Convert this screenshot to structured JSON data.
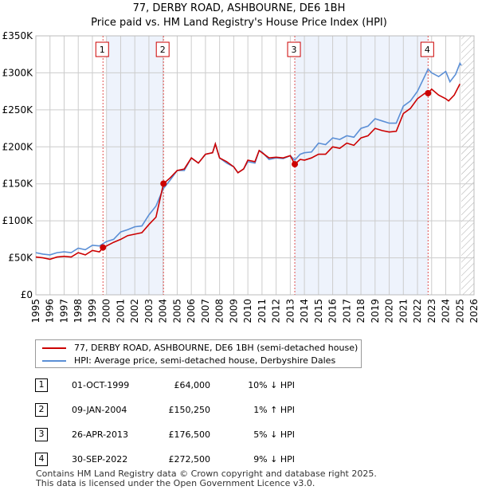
{
  "title": "77, DERBY ROAD, ASHBOURNE, DE6 1BH",
  "subtitle": "Price paid vs. HM Land Registry's House Price Index (HPI)",
  "chart_data": {
    "type": "line",
    "ylim": [
      0,
      350000
    ],
    "xlim": [
      1995,
      2026
    ],
    "y_ticks": [
      {
        "v": 0,
        "label": "£0"
      },
      {
        "v": 50000,
        "label": "£50K"
      },
      {
        "v": 100000,
        "label": "£100K"
      },
      {
        "v": 150000,
        "label": "£150K"
      },
      {
        "v": 200000,
        "label": "£200K"
      },
      {
        "v": 250000,
        "label": "£250K"
      },
      {
        "v": 300000,
        "label": "£300K"
      },
      {
        "v": 350000,
        "label": "£350K"
      }
    ],
    "x_ticks": [
      "1995",
      "1996",
      "1997",
      "1998",
      "1999",
      "2000",
      "2001",
      "2002",
      "2003",
      "2004",
      "2005",
      "2006",
      "2007",
      "2008",
      "2009",
      "2010",
      "2011",
      "2012",
      "2013",
      "2014",
      "2015",
      "2016",
      "2017",
      "2018",
      "2019",
      "2020",
      "2021",
      "2022",
      "2023",
      "2024",
      "2025",
      "2026"
    ],
    "shaded_ranges": [
      [
        2000,
        2004.03
      ],
      [
        2013.32,
        2022.75
      ]
    ],
    "future_hatch_from": 2025.1,
    "series": [
      {
        "name": "77, DERBY ROAD, ASHBOURNE, DE6 1BH (semi-detached house)",
        "color": "#cc0000",
        "x": [
          1995,
          1995.5,
          1996,
          1996.5,
          1997,
          1997.5,
          1998,
          1998.5,
          1999,
          1999.5,
          1999.75,
          2000,
          2000.5,
          2001,
          2001.5,
          2002,
          2002.5,
          2003,
          2003.5,
          2004.03,
          2004.5,
          2005,
          2005.5,
          2006,
          2006.5,
          2007,
          2007.5,
          2007.7,
          2008,
          2008.5,
          2009,
          2009.3,
          2009.7,
          2010,
          2010.5,
          2010.8,
          2011,
          2011.5,
          2012,
          2012.5,
          2013,
          2013.32,
          2013.7,
          2014,
          2014.5,
          2015,
          2015.5,
          2016,
          2016.5,
          2017,
          2017.5,
          2018,
          2018.5,
          2019,
          2019.5,
          2020,
          2020.5,
          2021,
          2021.5,
          2022,
          2022.5,
          2022.75,
          2023,
          2023.5,
          2024,
          2024.2,
          2024.6,
          2025
        ],
        "y": [
          51000,
          50000,
          48000,
          51000,
          52000,
          51000,
          57000,
          54000,
          60000,
          58000,
          64000,
          66000,
          71000,
          75000,
          80000,
          82000,
          84000,
          95000,
          105000,
          150250,
          158000,
          168000,
          170000,
          185000,
          178000,
          190000,
          192000,
          204000,
          185000,
          180000,
          173000,
          165000,
          170000,
          182000,
          180000,
          195000,
          192000,
          185000,
          186000,
          185000,
          188000,
          176500,
          183000,
          182000,
          185000,
          190000,
          190000,
          200000,
          198000,
          205000,
          202000,
          212000,
          215000,
          225000,
          222000,
          220000,
          221000,
          245000,
          252000,
          265000,
          272000,
          272500,
          278000,
          270000,
          265000,
          262000,
          270000,
          285000
        ]
      },
      {
        "name": "HPI: Average price, semi-detached house, Derbyshire Dales",
        "color": "#5b8fd6",
        "x": [
          1995,
          1995.5,
          1996,
          1996.5,
          1997,
          1997.5,
          1998,
          1998.5,
          1999,
          1999.5,
          2000,
          2000.5,
          2001,
          2001.5,
          2002,
          2002.5,
          2003,
          2003.5,
          2004,
          2004.5,
          2005,
          2005.5,
          2006,
          2006.5,
          2007,
          2007.5,
          2007.7,
          2008,
          2008.5,
          2009,
          2009.3,
          2009.7,
          2010,
          2010.5,
          2010.8,
          2011,
          2011.5,
          2012,
          2012.5,
          2013,
          2013.32,
          2013.7,
          2014,
          2014.5,
          2015,
          2015.5,
          2016,
          2016.5,
          2017,
          2017.5,
          2018,
          2018.5,
          2019,
          2019.5,
          2020,
          2020.5,
          2021,
          2021.5,
          2022,
          2022.5,
          2022.75,
          2023,
          2023.5,
          2024,
          2024.3,
          2024.7,
          2025,
          2025.1
        ],
        "y": [
          57000,
          55000,
          54000,
          57000,
          58000,
          57000,
          63000,
          61000,
          67000,
          66000,
          72000,
          75000,
          85000,
          88000,
          92000,
          93000,
          108000,
          120000,
          143000,
          155000,
          168000,
          168000,
          185000,
          178000,
          190000,
          192000,
          204000,
          185000,
          178000,
          173000,
          165000,
          170000,
          180000,
          178000,
          195000,
          193000,
          183000,
          185000,
          184000,
          188000,
          182000,
          190000,
          192000,
          193000,
          205000,
          203000,
          212000,
          210000,
          215000,
          213000,
          225000,
          228000,
          238000,
          235000,
          232000,
          232000,
          255000,
          262000,
          275000,
          295000,
          305000,
          300000,
          295000,
          302000,
          288000,
          298000,
          313000,
          310000
        ]
      }
    ],
    "sales": [
      {
        "n": "1",
        "x": 1999.75,
        "y": 64000
      },
      {
        "n": "2",
        "x": 2004.03,
        "y": 150250
      },
      {
        "n": "3",
        "x": 2013.32,
        "y": 176500
      },
      {
        "n": "4",
        "x": 2022.75,
        "y": 272500
      }
    ]
  },
  "legend": [
    "77, DERBY ROAD, ASHBOURNE, DE6 1BH (semi-detached house)",
    "HPI: Average price, semi-detached house, Derbyshire Dales"
  ],
  "table": [
    {
      "n": "1",
      "date": "01-OCT-1999",
      "price": "£64,000",
      "hpi": "10% ↓ HPI"
    },
    {
      "n": "2",
      "date": "09-JAN-2004",
      "price": "£150,250",
      "hpi": "1% ↑ HPI"
    },
    {
      "n": "3",
      "date": "26-APR-2013",
      "price": "£176,500",
      "hpi": "5% ↓ HPI"
    },
    {
      "n": "4",
      "date": "30-SEP-2022",
      "price": "£272,500",
      "hpi": "9% ↓ HPI"
    }
  ],
  "footer": [
    "Contains HM Land Registry data © Crown copyright and database right 2025.",
    "This data is licensed under the Open Government Licence v3.0."
  ]
}
